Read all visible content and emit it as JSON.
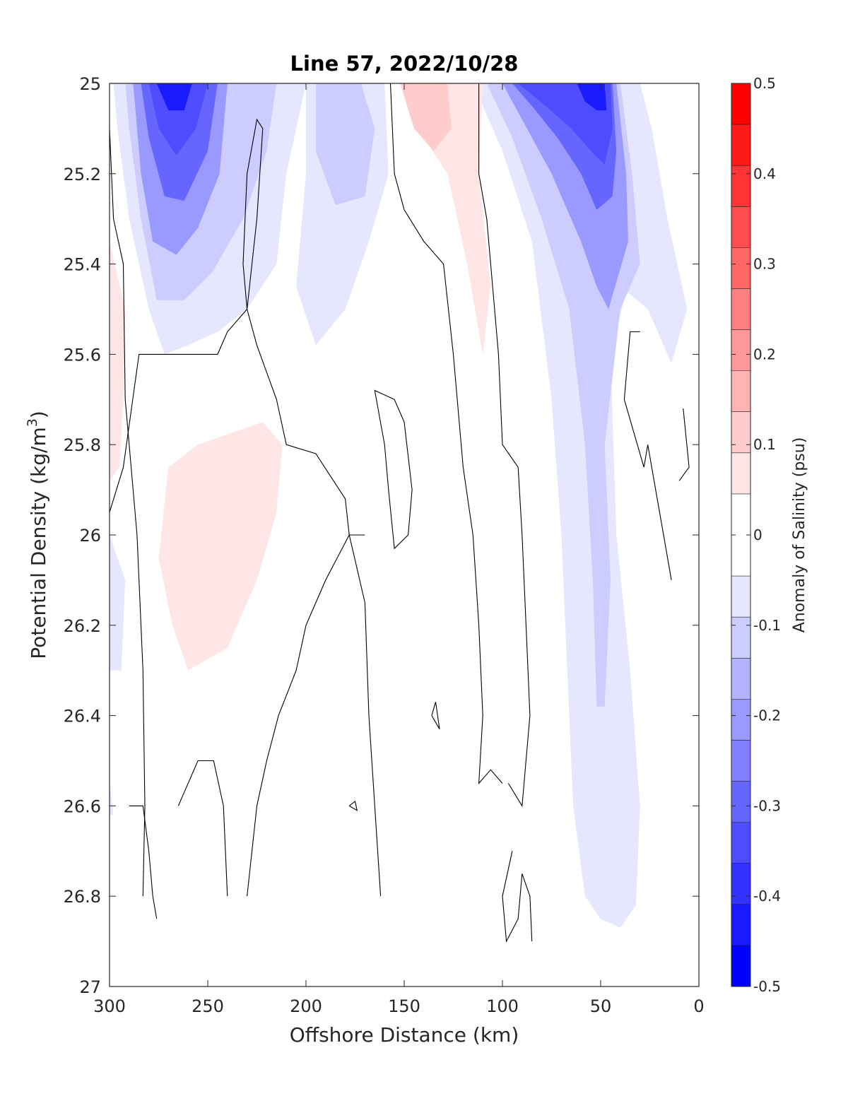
{
  "chart_data": {
    "type": "contour",
    "title": "Line 57, 2022/10/28",
    "xlabel": "Offshore Distance (km)",
    "ylabel_main": "Potential Density (kg/m",
    "ylabel_sup": "3",
    "ylabel_tail": ")",
    "xlim": [
      300,
      0
    ],
    "ylim": [
      25,
      27
    ],
    "y_reversed": true,
    "x_ticks": [
      "300",
      "250",
      "200",
      "150",
      "100",
      "50",
      "0"
    ],
    "y_ticks": [
      "25",
      "25.2",
      "25.4",
      "25.6",
      "25.8",
      "26",
      "26.2",
      "26.4",
      "26.6",
      "26.8",
      "27"
    ],
    "colorbar": {
      "label": "Anomaly of Salinity (psu)",
      "range": [
        -0.5,
        0.5
      ],
      "tick_labels": [
        "0.5",
        "0.4",
        "0.3",
        "0.2",
        "0.1",
        "0",
        "-0.1",
        "-0.2",
        "-0.3",
        "-0.4",
        "-0.5"
      ],
      "levels": [
        0.45,
        0.35,
        0.25,
        0.15,
        0.05,
        -0.05,
        -0.15,
        -0.25,
        -0.35,
        -0.45
      ],
      "colors": [
        "#ff0000",
        "#ff1a1a",
        "#ff3333",
        "#ff4d4d",
        "#ff6666",
        "#ff8080",
        "#ff9999",
        "#ffb3b3",
        "#ffcccc",
        "#ffe6e6",
        "#ffffff",
        "#ffffff",
        "#e6e6ff",
        "#ccccff",
        "#b3b3ff",
        "#9999ff",
        "#8080ff",
        "#6666ff",
        "#4d4dff",
        "#3333ff",
        "#1a1aff",
        "#0000ff"
      ]
    },
    "regions": [
      {
        "name": "nearshore-negative-core",
        "points": [
          [
            115,
            25
          ],
          [
            30,
            25
          ],
          [
            24,
            25.1
          ],
          [
            16,
            25.3
          ],
          [
            6,
            25.5
          ],
          [
            14,
            25.62
          ],
          [
            26,
            25.5
          ],
          [
            37,
            25.46
          ],
          [
            45,
            25.6
          ],
          [
            42,
            26.0
          ],
          [
            35,
            26.3
          ],
          [
            30,
            26.6
          ],
          [
            32,
            26.82
          ],
          [
            40,
            26.87
          ],
          [
            50,
            26.85
          ],
          [
            58,
            26.8
          ],
          [
            64,
            26.6
          ],
          [
            67,
            26.3
          ],
          [
            70,
            26.0
          ],
          [
            75,
            25.7
          ],
          [
            85,
            25.35
          ],
          [
            100,
            25.15
          ],
          [
            110,
            25.05
          ]
        ],
        "value": -0.08
      },
      {
        "name": "nearshore-band-2",
        "points": [
          [
            108,
            25
          ],
          [
            40,
            25
          ],
          [
            34,
            25.2
          ],
          [
            30,
            25.4
          ],
          [
            40,
            25.5
          ],
          [
            48,
            25.8
          ],
          [
            45,
            26.1
          ],
          [
            48,
            26.38
          ],
          [
            52,
            26.38
          ],
          [
            54,
            26.1
          ],
          [
            58,
            25.8
          ],
          [
            66,
            25.5
          ],
          [
            80,
            25.3
          ],
          [
            95,
            25.12
          ]
        ],
        "value": -0.12
      },
      {
        "name": "nearshore-band-3",
        "points": [
          [
            100,
            25
          ],
          [
            42,
            25
          ],
          [
            37,
            25.2
          ],
          [
            36,
            25.35
          ],
          [
            46,
            25.5
          ],
          [
            52,
            25.45
          ],
          [
            60,
            25.35
          ],
          [
            75,
            25.2
          ],
          [
            90,
            25.08
          ]
        ],
        "value": -0.2
      },
      {
        "name": "nearshore-band-4",
        "points": [
          [
            95,
            25
          ],
          [
            44,
            25
          ],
          [
            42,
            25.15
          ],
          [
            44,
            25.25
          ],
          [
            52,
            25.28
          ],
          [
            60,
            25.2
          ],
          [
            72,
            25.12
          ],
          [
            85,
            25.05
          ]
        ],
        "value": -0.28
      },
      {
        "name": "nearshore-band-5",
        "points": [
          [
            92,
            25
          ],
          [
            45,
            25
          ],
          [
            44,
            25.1
          ],
          [
            48,
            25.18
          ],
          [
            55,
            25.15
          ],
          [
            65,
            25.1
          ],
          [
            78,
            25.05
          ]
        ],
        "value": -0.35
      },
      {
        "name": "nearshore-band-6",
        "points": [
          [
            62,
            25
          ],
          [
            48,
            25
          ],
          [
            47,
            25.06
          ],
          [
            52,
            25.06
          ],
          [
            58,
            25.04
          ]
        ],
        "value": -0.45
      },
      {
        "name": "offshore-negative-outer",
        "points": [
          [
            298,
            25
          ],
          [
            200,
            25
          ],
          [
            210,
            25.2
          ],
          [
            215,
            25.4
          ],
          [
            230,
            25.5
          ],
          [
            245,
            25.55
          ],
          [
            260,
            25.58
          ],
          [
            272,
            25.6
          ],
          [
            280,
            25.5
          ],
          [
            290,
            25.3
          ],
          [
            296,
            25.1
          ]
        ],
        "value": -0.08
      },
      {
        "name": "offshore-band-2",
        "points": [
          [
            292,
            25
          ],
          [
            215,
            25
          ],
          [
            220,
            25.15
          ],
          [
            232,
            25.3
          ],
          [
            248,
            25.42
          ],
          [
            262,
            25.48
          ],
          [
            276,
            25.48
          ],
          [
            284,
            25.3
          ],
          [
            290,
            25.1
          ]
        ],
        "value": -0.12
      },
      {
        "name": "offshore-band-3",
        "points": [
          [
            288,
            25
          ],
          [
            240,
            25
          ],
          [
            244,
            25.2
          ],
          [
            255,
            25.32
          ],
          [
            266,
            25.38
          ],
          [
            278,
            25.35
          ],
          [
            284,
            25.2
          ]
        ],
        "value": -0.2
      },
      {
        "name": "offshore-band-4",
        "points": [
          [
            284,
            25
          ],
          [
            245,
            25
          ],
          [
            250,
            25.15
          ],
          [
            262,
            25.26
          ],
          [
            272,
            25.25
          ],
          [
            280,
            25.12
          ]
        ],
        "value": -0.28
      },
      {
        "name": "offshore-band-5",
        "points": [
          [
            280,
            25
          ],
          [
            250,
            25
          ],
          [
            256,
            25.1
          ],
          [
            266,
            25.16
          ],
          [
            275,
            25.1
          ]
        ],
        "value": -0.35
      },
      {
        "name": "offshore-band-6",
        "points": [
          [
            276,
            25
          ],
          [
            258,
            25
          ],
          [
            262,
            25.06
          ],
          [
            270,
            25.06
          ]
        ],
        "value": -0.45
      },
      {
        "name": "mid-negative",
        "points": [
          [
            200,
            25
          ],
          [
            160,
            25
          ],
          [
            158,
            25.2
          ],
          [
            168,
            25.35
          ],
          [
            180,
            25.5
          ],
          [
            195,
            25.58
          ],
          [
            205,
            25.45
          ],
          [
            200,
            25.2
          ]
        ],
        "value": -0.08
      },
      {
        "name": "mid-band-2",
        "points": [
          [
            195,
            25
          ],
          [
            172,
            25
          ],
          [
            165,
            25.1
          ],
          [
            170,
            25.25
          ],
          [
            185,
            25.27
          ],
          [
            195,
            25.15
          ]
        ],
        "value": -0.12
      },
      {
        "name": "positive-left-lobe",
        "points": [
          [
            300,
            25.35
          ],
          [
            292,
            25.5
          ],
          [
            293,
            25.7
          ],
          [
            295,
            25.85
          ],
          [
            300,
            25.88
          ]
        ],
        "value": 0.08
      },
      {
        "name": "positive-mid-blob",
        "points": [
          [
            242,
            25.78
          ],
          [
            222,
            25.75
          ],
          [
            212,
            25.8
          ],
          [
            215,
            25.95
          ],
          [
            225,
            26.1
          ],
          [
            240,
            26.25
          ],
          [
            260,
            26.3
          ],
          [
            268,
            26.2
          ],
          [
            275,
            26.05
          ],
          [
            270,
            25.85
          ],
          [
            255,
            25.8
          ]
        ],
        "value": 0.08
      },
      {
        "name": "positive-top-center",
        "points": [
          [
            152,
            25
          ],
          [
            110,
            25
          ],
          [
            112,
            25.2
          ],
          [
            106,
            25.45
          ],
          [
            110,
            25.6
          ],
          [
            118,
            25.4
          ],
          [
            128,
            25.2
          ],
          [
            140,
            25.12
          ]
        ],
        "value": 0.08
      },
      {
        "name": "positive-top-center-core",
        "points": [
          [
            152,
            25
          ],
          [
            128,
            25
          ],
          [
            126,
            25.1
          ],
          [
            135,
            25.15
          ],
          [
            145,
            25.1
          ]
        ],
        "value": 0.12
      },
      {
        "name": "left-low-negative",
        "points": [
          [
            300,
            26.0
          ],
          [
            292,
            26.1
          ],
          [
            294,
            26.3
          ],
          [
            300,
            26.3
          ]
        ],
        "value": -0.08
      },
      {
        "name": "left-bottom-negative",
        "points": [
          [
            300,
            26.55
          ],
          [
            298,
            26.62
          ],
          [
            300,
            26.62
          ]
        ],
        "value": -0.08
      }
    ],
    "contours_zero": [
      [
        [
          300,
          25.1
        ],
        [
          298,
          25.3
        ],
        [
          293,
          25.4
        ],
        [
          292,
          25.7
        ],
        [
          290,
          25.8
        ],
        [
          286,
          26.0
        ],
        [
          283,
          26.3
        ],
        [
          282,
          26.6
        ],
        [
          283,
          26.8
        ]
      ],
      [
        [
          300,
          25.95
        ],
        [
          293,
          25.85
        ],
        [
          285,
          25.6
        ],
        [
          270,
          25.6
        ],
        [
          260,
          25.6
        ],
        [
          245,
          25.6
        ],
        [
          240,
          25.55
        ],
        [
          230,
          25.5
        ],
        [
          225,
          25.3
        ],
        [
          222,
          25.1
        ],
        [
          225,
          25.08
        ],
        [
          230,
          25.2
        ],
        [
          232,
          25.4
        ],
        [
          230,
          25.5
        ],
        [
          225,
          25.58
        ],
        [
          215,
          25.7
        ],
        [
          210,
          25.8
        ],
        [
          195,
          25.82
        ],
        [
          180,
          25.92
        ],
        [
          178,
          26.0
        ],
        [
          170,
          26.15
        ],
        [
          168,
          26.4
        ],
        [
          165,
          26.6
        ],
        [
          162,
          26.8
        ]
      ],
      [
        [
          290,
          26.6
        ],
        [
          283,
          26.6
        ],
        [
          280,
          26.7
        ],
        [
          278,
          26.8
        ],
        [
          276,
          26.85
        ]
      ],
      [
        [
          265,
          26.6
        ],
        [
          255,
          26.5
        ],
        [
          247,
          26.5
        ],
        [
          242,
          26.6
        ],
        [
          240,
          26.8
        ]
      ],
      [
        [
          230,
          26.8
        ],
        [
          225,
          26.6
        ],
        [
          220,
          26.5
        ],
        [
          214,
          26.4
        ],
        [
          205,
          26.3
        ],
        [
          200,
          26.2
        ],
        [
          190,
          26.1
        ],
        [
          178,
          26.0
        ],
        [
          170,
          26.0
        ]
      ],
      [
        [
          160,
          25.8
        ],
        [
          165,
          25.68
        ],
        [
          155,
          25.7
        ],
        [
          150,
          25.75
        ],
        [
          146,
          25.9
        ],
        [
          148,
          26.0
        ],
        [
          155,
          26.03
        ],
        [
          158,
          25.9
        ],
        [
          160,
          25.8
        ]
      ],
      [
        [
          157,
          25
        ],
        [
          155,
          25.2
        ],
        [
          150,
          25.28
        ],
        [
          140,
          25.35
        ],
        [
          130,
          25.4
        ],
        [
          125,
          25.6
        ],
        [
          120,
          25.85
        ],
        [
          115,
          26.0
        ],
        [
          112,
          26.2
        ],
        [
          110,
          26.4
        ],
        [
          112,
          26.55
        ],
        [
          106,
          26.52
        ],
        [
          100,
          26.55
        ]
      ],
      [
        [
          112,
          25
        ],
        [
          112,
          25.2
        ],
        [
          108,
          25.3
        ],
        [
          105,
          25.45
        ],
        [
          102,
          25.6
        ],
        [
          100,
          25.8
        ],
        [
          92,
          25.85
        ],
        [
          90,
          26.0
        ],
        [
          88,
          26.2
        ],
        [
          86,
          26.4
        ],
        [
          90,
          26.6
        ],
        [
          97,
          26.55
        ]
      ],
      [
        [
          95,
          26.7
        ],
        [
          100,
          26.8
        ],
        [
          98,
          26.9
        ],
        [
          92,
          26.85
        ],
        [
          90,
          26.75
        ],
        [
          86,
          26.8
        ],
        [
          85,
          26.9
        ]
      ],
      [
        [
          30,
          25.55
        ],
        [
          35,
          25.55
        ],
        [
          38,
          25.7
        ],
        [
          28,
          25.85
        ],
        [
          26,
          25.8
        ],
        [
          22,
          25.9
        ],
        [
          18,
          26.0
        ],
        [
          14,
          26.1
        ]
      ],
      [
        [
          8,
          25.72
        ],
        [
          5,
          25.85
        ],
        [
          10,
          25.88
        ]
      ],
      [
        [
          136,
          26.4
        ],
        [
          132,
          26.43
        ],
        [
          134,
          26.37
        ],
        [
          136,
          26.4
        ]
      ],
      [
        [
          178,
          26.6
        ],
        [
          174,
          26.61
        ],
        [
          175,
          26.59
        ],
        [
          178,
          26.6
        ]
      ]
    ]
  }
}
